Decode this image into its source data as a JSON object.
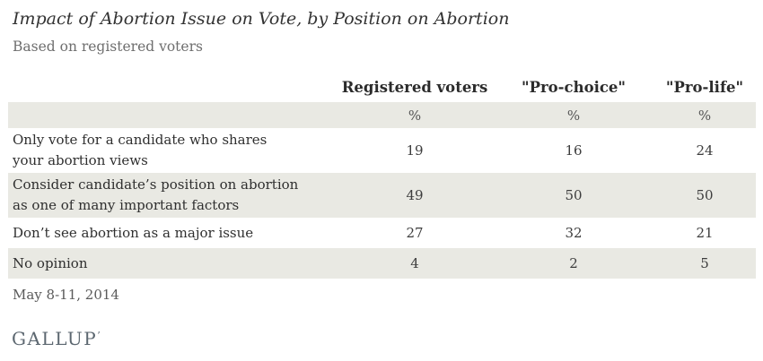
{
  "header": {
    "title": "Impact of Abortion Issue on Vote, by Position on Abortion",
    "subtitle": "Based on registered voters"
  },
  "table": {
    "columns": [
      "Registered voters",
      "\"Pro-choice\"",
      "\"Pro-life\""
    ],
    "unit_row": [
      "%",
      "%",
      "%"
    ],
    "rows": [
      {
        "label_lines": [
          "Only vote for a candidate who shares",
          "your abortion views"
        ],
        "values": [
          19,
          16,
          24
        ]
      },
      {
        "label_lines": [
          "Consider candidate’s position on abortion",
          "as one of many important factors"
        ],
        "values": [
          49,
          50,
          50
        ]
      },
      {
        "label_lines": [
          "Don’t see abortion as a major issue"
        ],
        "values": [
          27,
          32,
          21
        ]
      },
      {
        "label_lines": [
          "No opinion"
        ],
        "values": [
          4,
          2,
          5
        ]
      }
    ]
  },
  "footer": {
    "date": "May 8-11, 2014",
    "brand": "GALLUP",
    "brand_mark": "’"
  },
  "colors": {
    "band": "#e9e9e3",
    "title_text": "#333333",
    "subtitle_text": "#6e6e6e",
    "body_text": "#2f2f2f",
    "brand": "#5c6770"
  },
  "chart_data": {
    "type": "table",
    "title": "Impact of Abortion Issue on Vote, by Position on Abortion",
    "subtitle": "Based on registered voters",
    "unit": "%",
    "categories": [
      "Only vote for a candidate who shares your abortion views",
      "Consider candidate’s position on abortion as one of many important factors",
      "Don’t see abortion as a major issue",
      "No opinion"
    ],
    "series": [
      {
        "name": "Registered voters",
        "values": [
          19,
          49,
          27,
          4
        ]
      },
      {
        "name": "\"Pro-choice\"",
        "values": [
          16,
          50,
          32,
          2
        ]
      },
      {
        "name": "\"Pro-life\"",
        "values": [
          24,
          50,
          21,
          5
        ]
      }
    ],
    "date": "May 8-11, 2014",
    "source": "GALLUP"
  }
}
